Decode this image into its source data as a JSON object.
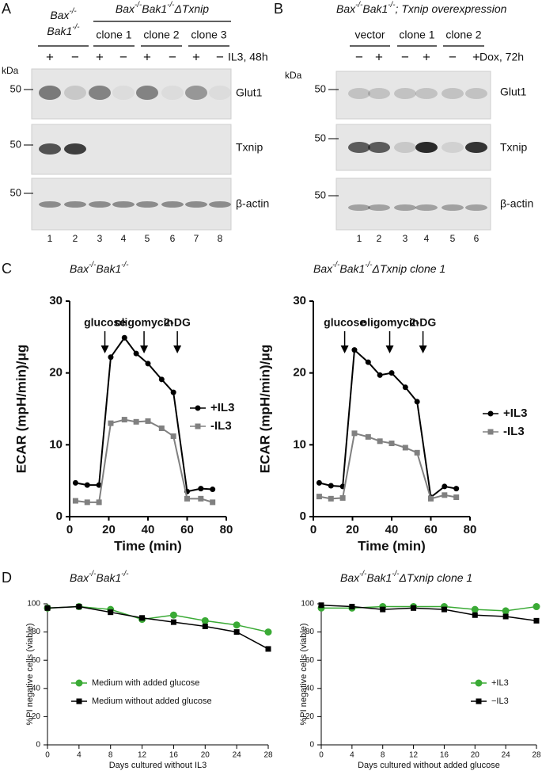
{
  "panel_labels": [
    "A",
    "B",
    "C",
    "D"
  ],
  "blot_A": {
    "header_left": [
      [
        "Bax",
        "-/-"
      ],
      [
        "Bak1",
        "-/-"
      ]
    ],
    "header_group": [
      "Bax",
      "-/-",
      "Bak1",
      "-/-",
      "ΔTxnip"
    ],
    "groups": [
      "clone 1",
      "clone 2",
      "clone 3"
    ],
    "treatment": [
      "+",
      "−",
      "+",
      "−",
      "+",
      "−",
      "+",
      "−"
    ],
    "treatment_label": "IL3, 48h",
    "kda": "kDa",
    "markers": [
      50,
      50,
      50
    ],
    "rows": [
      "Glut1",
      "Txnip",
      "β-actin"
    ],
    "lanes": [
      1,
      2,
      3,
      4,
      5,
      6,
      7,
      8
    ]
  },
  "blot_B": {
    "header_group": [
      "Bax",
      "-/-",
      "Bak1",
      "-/-",
      "; Txnip overexpression"
    ],
    "groups": [
      "vector",
      "clone 1",
      "clone 2"
    ],
    "treatment": [
      "−",
      "+",
      "−",
      "+",
      "−",
      "+"
    ],
    "treatment_label": "Dox, 72h",
    "kda": "kDa",
    "markers": [
      50,
      50,
      50
    ],
    "rows": [
      "Glut1",
      "Txnip",
      "β-actin"
    ],
    "lanes": [
      1,
      2,
      3,
      4,
      5,
      6
    ]
  },
  "chart_data": [
    {
      "type": "line",
      "title": [
        "Bax",
        "-/-",
        "Bak1",
        "-/-"
      ],
      "x_label": "Time (min)",
      "y_label": "ECAR (mpH/min)/μg",
      "x": [
        3,
        9,
        15,
        21,
        28,
        34,
        40,
        47,
        53,
        60,
        67,
        73
      ],
      "series": [
        {
          "name": "+IL3",
          "color": "#000000",
          "marker": "circle",
          "values": [
            4.7,
            4.4,
            4.4,
            22.2,
            24.9,
            22.7,
            21.3,
            19.1,
            17.3,
            3.5,
            3.9,
            3.8
          ]
        },
        {
          "name": "-IL3",
          "color": "#808080",
          "marker": "square",
          "values": [
            2.2,
            2.0,
            2.0,
            13.0,
            13.5,
            13.2,
            13.3,
            12.3,
            11.2,
            2.5,
            2.5,
            2.0
          ]
        }
      ],
      "annotations": [
        {
          "text": "glucose",
          "x": 18
        },
        {
          "text": "oligomycin",
          "x": 38
        },
        {
          "text": "2-DG",
          "x": 55
        }
      ],
      "xlim": [
        0,
        80
      ],
      "xticks": [
        0,
        20,
        40,
        60,
        80
      ],
      "ylim": [
        0,
        30
      ],
      "yticks": [
        0,
        10,
        20,
        30
      ],
      "legend": "center right"
    },
    {
      "type": "line",
      "title": [
        "Bax",
        "-/-",
        "Bak1",
        "-/-",
        "ΔTxnip clone 1"
      ],
      "x_label": "Time (min)",
      "y_label": "ECAR (mpH/min)/μg",
      "x": [
        3,
        9,
        15,
        21,
        28,
        34,
        40,
        47,
        53,
        60,
        67,
        73
      ],
      "series": [
        {
          "name": "+IL3",
          "color": "#000000",
          "marker": "circle",
          "values": [
            4.7,
            4.3,
            4.2,
            23.2,
            21.5,
            19.7,
            20.0,
            18.0,
            16.0,
            2.7,
            4.2,
            3.9
          ]
        },
        {
          "name": "-IL3",
          "color": "#808080",
          "marker": "square",
          "values": [
            2.8,
            2.5,
            2.6,
            11.6,
            11.1,
            10.5,
            10.2,
            9.6,
            8.9,
            2.5,
            3.0,
            2.7
          ]
        }
      ],
      "annotations": [
        {
          "text": "glucose",
          "x": 16
        },
        {
          "text": "oligomycin",
          "x": 39
        },
        {
          "text": "2-DG",
          "x": 56
        }
      ],
      "xlim": [
        0,
        80
      ],
      "xticks": [
        0,
        20,
        40,
        60,
        80
      ],
      "ylim": [
        0,
        30
      ],
      "yticks": [
        0,
        10,
        20,
        30
      ],
      "legend": "center right"
    },
    {
      "type": "line",
      "title": [
        "Bax",
        "-/-",
        "Bak1",
        "-/-"
      ],
      "x_label": "Days cultured without IL3",
      "y_label": "%PI negative cells (viable)",
      "x": [
        0,
        4,
        8,
        12,
        16,
        20,
        24,
        28
      ],
      "series": [
        {
          "name": "Medium with added glucose",
          "color": "#3aaa35",
          "marker": "circle",
          "values": [
            97,
            98,
            96,
            89,
            92,
            88,
            85,
            80
          ]
        },
        {
          "name": "Medium without added glucose",
          "color": "#000000",
          "marker": "square",
          "values": [
            97,
            98,
            94,
            90,
            87,
            84,
            80,
            68
          ]
        }
      ],
      "xlim": [
        0,
        28
      ],
      "xticks": [
        0,
        4,
        8,
        12,
        16,
        20,
        24,
        28
      ],
      "ylim": [
        0,
        100
      ],
      "yticks": [
        0,
        20,
        40,
        60,
        80,
        100
      ],
      "legend": "lower left"
    },
    {
      "type": "line",
      "title": [
        "Bax",
        "-/-",
        "Bak1",
        "-/-",
        "ΔTxnip clone 1"
      ],
      "x_label": "Days cultured without added glucose",
      "y_label": "%PI negative cells (viable)",
      "x": [
        0,
        4,
        8,
        12,
        16,
        20,
        24,
        28
      ],
      "series": [
        {
          "name": "+IL3",
          "color": "#3aaa35",
          "marker": "circle",
          "values": [
            97,
            97,
            98,
            98,
            98,
            96,
            95,
            98
          ]
        },
        {
          "name": "−IL3",
          "color": "#000000",
          "marker": "square",
          "values": [
            99,
            98,
            96,
            97,
            96,
            92,
            91,
            88
          ]
        }
      ],
      "xlim": [
        0,
        28
      ],
      "xticks": [
        0,
        4,
        8,
        12,
        16,
        20,
        24,
        28
      ],
      "ylim": [
        0,
        100
      ],
      "yticks": [
        0,
        20,
        40,
        60,
        80,
        100
      ],
      "legend": "lower right"
    }
  ]
}
